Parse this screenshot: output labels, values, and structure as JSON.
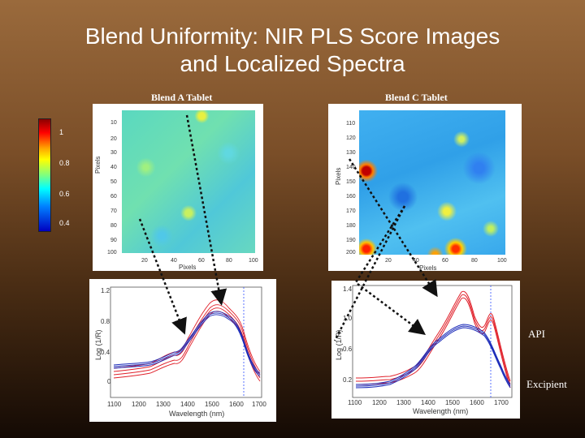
{
  "slide": {
    "title_line1": "Blend Uniformity: NIR PLS Score Images",
    "title_line2": "and Localized Spectra"
  },
  "panels": {
    "left_title": "Blend A Tablet",
    "right_title": "Blend C Tablet",
    "map_y_label": "Pixels",
    "map_x_label": "Pixels",
    "left_map_y_ticks": [
      "10",
      "20",
      "30",
      "40",
      "50",
      "60",
      "70",
      "80",
      "90",
      "100"
    ],
    "left_map_x_ticks": [
      "20",
      "40",
      "60",
      "80",
      "100"
    ],
    "right_map_y_ticks": [
      "110",
      "120",
      "130",
      "140",
      "150",
      "160",
      "170",
      "180",
      "190",
      "200"
    ],
    "right_map_x_ticks": [
      "20",
      "40",
      "60",
      "80",
      "100"
    ]
  },
  "colorbar": {
    "labels": [
      "1",
      "0.8",
      "0.6",
      "0.4"
    ]
  },
  "spectra": {
    "y_label": "Log (1/R)",
    "x_label": "Wavelength (nm)",
    "x_ticks": [
      "1100",
      "1200",
      "1300",
      "1400",
      "1500",
      "1600",
      "1700"
    ],
    "left_y_ticks": [
      "1.2",
      "0.8",
      "0.4",
      "0"
    ],
    "right_y_ticks": [
      "1.4",
      "1.0",
      "0.6",
      "0.2"
    ]
  },
  "legend": {
    "api": "API",
    "excipient": "Excipient"
  },
  "colors": {
    "api": "#e0202a",
    "excipient": "#1a2ab8",
    "background_top": "#9a6a3c",
    "background_bottom": "#140a04"
  }
}
